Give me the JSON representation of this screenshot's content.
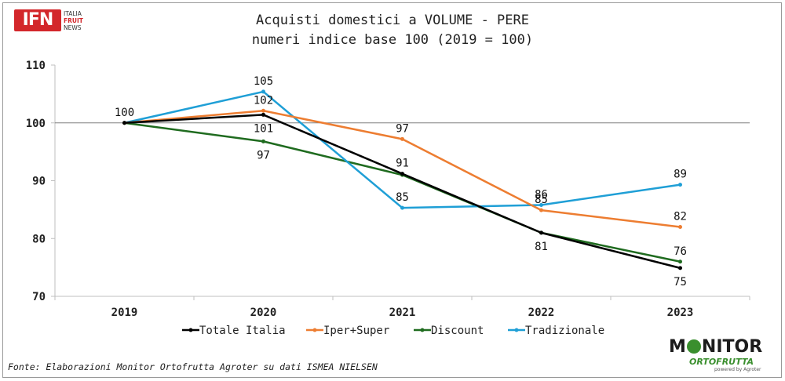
{
  "header": {
    "title_line1": "Acquisti domestici a VOLUME - PERE",
    "title_line2": "numeri indice base 100 (2019 = 100)"
  },
  "logo_ifn": {
    "badge": "IFN",
    "line1": "ITALIA",
    "line2": "FRUIT",
    "line3": "NEWS"
  },
  "logo_monitor": {
    "word_before": "M",
    "word_after": "NITOR",
    "sub": "ORTOFRUTTA",
    "powered": "powered by Agroter"
  },
  "footer": {
    "source": "Fonte: Elaborazioni Monitor Ortofrutta Agroter su dati ISMEA NIELSEN"
  },
  "chart_data": {
    "type": "line",
    "title": "Acquisti domestici a VOLUME - PERE numeri indice base 100 (2019 = 100)",
    "xlabel": "",
    "ylabel": "",
    "categories": [
      "2019",
      "2020",
      "2021",
      "2022",
      "2023"
    ],
    "ylim": [
      70,
      110
    ],
    "yticks": [
      70,
      80,
      90,
      100,
      110
    ],
    "reference_line": 100,
    "grid": false,
    "legend_position": "bottom",
    "series": [
      {
        "name": "Totale Italia",
        "color": "#000000",
        "values": [
          100,
          101.4,
          91.2,
          81.0,
          74.9
        ],
        "labels": [
          "",
          "101",
          "91",
          "81",
          "75"
        ],
        "label_pos": [
          "above",
          "below",
          "above",
          "below",
          "below"
        ]
      },
      {
        "name": "Iper+Super",
        "color": "#ed7d31",
        "values": [
          100,
          102.1,
          97.2,
          84.9,
          82.0
        ],
        "labels": [
          "",
          "102",
          "97",
          "85",
          "82"
        ],
        "label_pos": [
          "above",
          "above",
          "above",
          "above",
          "above"
        ]
      },
      {
        "name": "Discount",
        "color": "#1f6b1f",
        "values": [
          100,
          96.8,
          91.0,
          81.0,
          76.0
        ],
        "labels": [
          "100",
          "97",
          "",
          "",
          "76"
        ],
        "label_pos": [
          "above",
          "below",
          "above",
          "below",
          "above"
        ]
      },
      {
        "name": "Tradizionale",
        "color": "#1f9fd6",
        "values": [
          100,
          105.4,
          85.3,
          85.8,
          89.3
        ],
        "labels": [
          "",
          "105",
          "85",
          "86",
          "89"
        ],
        "label_pos": [
          "above",
          "above",
          "above",
          "above",
          "above"
        ]
      }
    ]
  }
}
